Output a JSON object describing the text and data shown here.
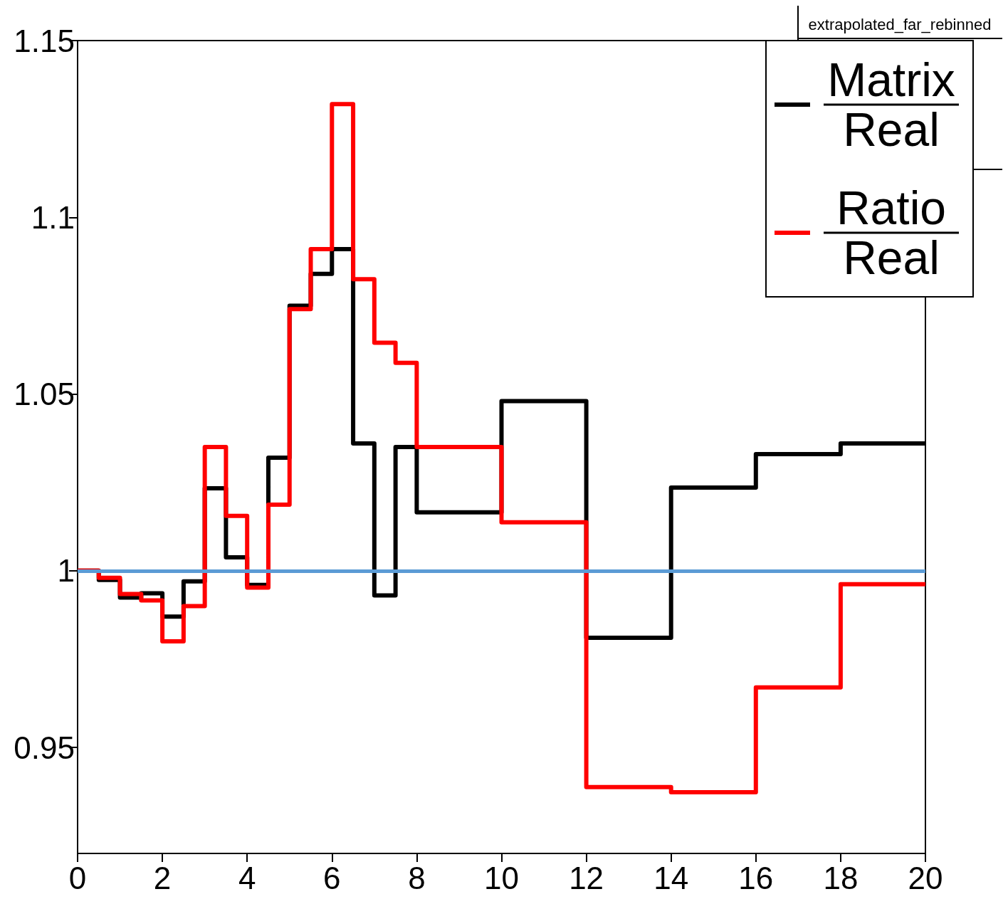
{
  "chart_data": {
    "type": "histogram",
    "bins": [
      0,
      0.5,
      1,
      1.5,
      2,
      2.5,
      3,
      3.5,
      4,
      4.5,
      5,
      5.5,
      6,
      6.5,
      7,
      7.5,
      8,
      10,
      12,
      14,
      16,
      18,
      20
    ],
    "series": [
      {
        "name": "Matrix\nReal",
        "color": "#000000",
        "values": [
          1.0,
          0.9974,
          0.9924,
          0.9936,
          0.987,
          0.997,
          1.0233,
          1.0038,
          0.996,
          1.032,
          1.075,
          1.084,
          1.091,
          1.036,
          0.993,
          1.035,
          1.0165,
          1.048,
          0.981,
          1.0235,
          1.033,
          1.036
        ]
      },
      {
        "name": "Ratio\nReal",
        "color": "#ff0000",
        "values": [
          1.0,
          0.998,
          0.9934,
          0.9916,
          0.98,
          0.99,
          1.035,
          1.0155,
          0.9952,
          1.0187,
          1.074,
          1.091,
          1.132,
          1.0825,
          1.0645,
          1.0588,
          1.035,
          1.0137,
          0.9388,
          0.9373,
          0.967,
          0.9962
        ]
      }
    ],
    "xlim": [
      0,
      20
    ],
    "xticks": [
      0,
      2,
      4,
      6,
      8,
      10,
      12,
      14,
      16,
      18,
      20
    ],
    "ylim": [
      0.92,
      1.15
    ],
    "yticks": [
      0.95,
      1,
      1.05,
      1.1,
      1.15
    ],
    "ref_lines": [
      {
        "axis": "y",
        "value": 1,
        "color": "#5b9bd5"
      }
    ],
    "annotations": [
      "extrapolated_far_rebinned"
    ],
    "legend": "top right",
    "grid": false
  }
}
